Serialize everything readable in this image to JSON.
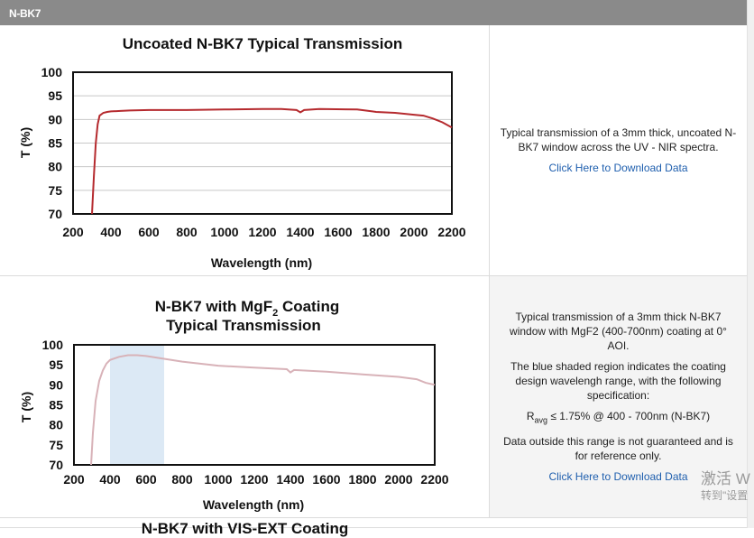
{
  "section": {
    "title": "N-BK7"
  },
  "charts": [
    {
      "chart_data": {
        "type": "line",
        "title": "Uncoated N-BK7 Typical Transmission",
        "xlabel": "Wavelength (nm)",
        "ylabel": "T (%)",
        "xlim": [
          200,
          2200
        ],
        "ylim": [
          70,
          100
        ],
        "xticks": [
          "200",
          "400",
          "600",
          "800",
          "1000",
          "1200",
          "1400",
          "1600",
          "1800",
          "2000",
          "2200"
        ],
        "yticks": [
          "70",
          "75",
          "80",
          "85",
          "90",
          "95",
          "100"
        ],
        "grid": true,
        "series": [
          {
            "color": "#b52a2e",
            "x": [
              300,
              310,
              320,
              330,
              340,
              360,
              380,
              400,
              450,
              500,
              600,
              800,
              1000,
              1200,
              1300,
              1380,
              1400,
              1420,
              1500,
              1700,
              1780,
              1800,
              1900,
              2000,
              2050,
              2100,
              2150,
              2200
            ],
            "y": [
              70,
              78,
              85,
              89,
              90.8,
              91.4,
              91.6,
              91.7,
              91.8,
              91.9,
              92.0,
              92.0,
              92.1,
              92.2,
              92.2,
              92.0,
              91.5,
              92.0,
              92.2,
              92.1,
              91.7,
              91.6,
              91.4,
              91.0,
              90.8,
              90.2,
              89.4,
              88.3
            ]
          }
        ]
      }
    },
    {
      "chart_data": {
        "type": "line",
        "title_line1": "N-BK7 with MgF",
        "title_sub": "2",
        "title_line1_suffix": " Coating",
        "title_line2": "Typical Transmission",
        "xlabel": "Wavelength (nm)",
        "ylabel": "T (%)",
        "xlim": [
          200,
          2200
        ],
        "ylim": [
          70,
          100
        ],
        "xticks": [
          "200",
          "400",
          "600",
          "800",
          "1000",
          "1200",
          "1400",
          "1600",
          "1800",
          "2000",
          "2200"
        ],
        "yticks": [
          "70",
          "75",
          "80",
          "85",
          "90",
          "95",
          "100"
        ],
        "grid": false,
        "shaded_region": {
          "from": 400,
          "to": 700,
          "color": "#dce9f5"
        },
        "series": [
          {
            "color": "#d8b2b8",
            "x": [
              295,
              305,
              320,
              340,
              360,
              380,
              400,
              450,
              500,
              550,
              600,
              700,
              800,
              1000,
              1200,
              1380,
              1400,
              1420,
              1600,
              1800,
              2000,
              2100,
              2150,
              2200
            ],
            "y": [
              70,
              78,
              86,
              91,
              93.6,
              95.3,
              96.2,
              97.0,
              97.4,
              97.4,
              97.2,
              96.5,
              95.8,
              94.8,
              94.3,
              93.9,
              93.1,
              93.7,
              93.3,
              92.6,
              92.0,
              91.4,
              90.5,
              90.0
            ]
          }
        ]
      }
    }
  ],
  "descriptions": [
    {
      "paragraphs": [
        "Typical transmission of a 3mm thick, uncoated N-BK7 window across the UV - NIR spectra."
      ],
      "link": "Click Here to Download Data"
    },
    {
      "paragraphs": [
        "Typical transmission of a 3mm thick N-BK7 window with MgF2 (400-700nm) coating at 0° AOI.",
        "The blue shaded region indicates the coating design wavelengh range, with the following specification:"
      ],
      "spec_symbol": "R",
      "spec_sub": "avg",
      "spec_text": " ≤ 1.75% @ 400 - 700nm (N-BK7)",
      "note": "Data outside this range is not guaranteed and is for reference only.",
      "link": "Click Here to Download Data"
    }
  ],
  "next_section_title": "N-BK7 with VIS-EXT Coating",
  "watermark": {
    "line1": "激活 W",
    "line2": "转到\"设置"
  }
}
